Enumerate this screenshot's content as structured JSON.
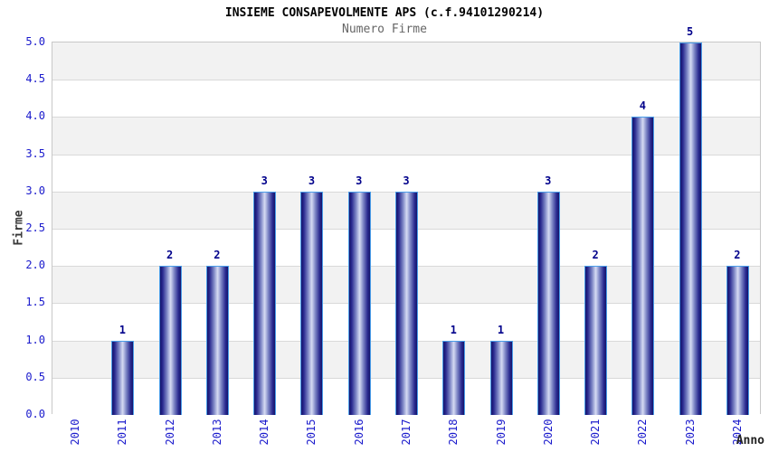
{
  "chart": {
    "title": "INSIEME CONSAPEVOLMENTE APS (c.f.94101290214)",
    "subtitle": "Numero Firme",
    "ylabel": "Firme",
    "xlabel": "Anno"
  },
  "chart_data": {
    "type": "bar",
    "title": "INSIEME CONSAPEVOLMENTE APS (c.f.94101290214)",
    "subtitle": "Numero Firme",
    "xlabel": "Anno",
    "ylabel": "Firme",
    "categories": [
      "2010",
      "2011",
      "2012",
      "2013",
      "2014",
      "2015",
      "2016",
      "2017",
      "2018",
      "2019",
      "2020",
      "2021",
      "2022",
      "2023",
      "2024"
    ],
    "values": [
      0,
      1,
      2,
      2,
      3,
      3,
      3,
      3,
      1,
      1,
      3,
      2,
      4,
      5,
      2
    ],
    "ylim": [
      0,
      5
    ],
    "ytick_step": 0.5,
    "ytick_labels": [
      "0.0",
      "0.5",
      "1.0",
      "1.5",
      "2.0",
      "2.5",
      "3.0",
      "3.5",
      "4.0",
      "4.5",
      "5.0"
    ],
    "grid": true,
    "legend": "none",
    "colors": {
      "tick_label": "#1a1acc",
      "value_label": "#00008b",
      "bar_edge_dark": "#14146a",
      "bar_center_light": "#d6dbf3",
      "bar_outline": "#4a9de8",
      "band_gray": "#f2f2f2",
      "band_white": "#ffffff",
      "gridline": "#d9d9d9",
      "subtitle_gray": "#666666"
    }
  }
}
